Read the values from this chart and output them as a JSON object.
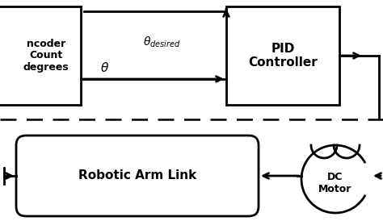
{
  "bg_color": "#ffffff",
  "line_color": "#000000",
  "figsize": [
    4.74,
    2.74
  ],
  "dpi": 100,
  "encoder_label": "ncoder\nCount\ndegrees",
  "pid_label": "PID\nController",
  "robotic_label": "Robotic Arm Link",
  "motor_label": "DC\nMotor"
}
